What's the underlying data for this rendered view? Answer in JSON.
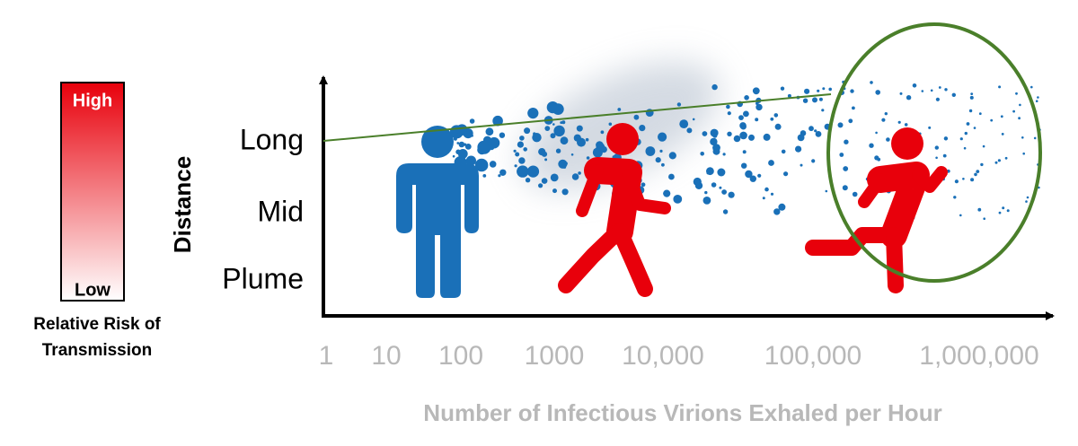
{
  "legend": {
    "high": "High",
    "low": "Low",
    "caption_line1": "Relative Risk of",
    "caption_line2": "Transmission"
  },
  "y_axis": {
    "title": "Distance",
    "labels": [
      "Long",
      "Mid",
      "Plume"
    ]
  },
  "x_axis": {
    "title": "Number of Infectious Virions Exhaled per Hour",
    "labels": [
      "1",
      "10",
      "100",
      "1000",
      "10,000",
      "100,000",
      "1,000,000"
    ]
  }
}
